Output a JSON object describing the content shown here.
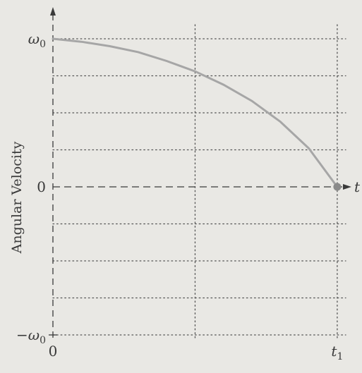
{
  "chart_data": {
    "type": "line",
    "title": "",
    "ylabel": "Angular Velocity",
    "xlabel": "t",
    "x_ticks": [
      {
        "value": 0,
        "label": "0"
      },
      {
        "value": 1,
        "label": "t",
        "sub": "1"
      }
    ],
    "y_ticks": [
      {
        "value": 1,
        "label": "ω",
        "sub": "0"
      },
      {
        "value": 0,
        "label": "0"
      },
      {
        "value": -1,
        "label": "−ω",
        "sub": "0"
      }
    ],
    "xlim": [
      0,
      1.03
    ],
    "ylim": [
      -1,
      1
    ],
    "y_gridlines": [
      1,
      0.75,
      0.5,
      0.25,
      -0.25,
      -0.5,
      -0.75,
      -1
    ],
    "x_gridlines": [
      0.5,
      1
    ],
    "grid": true,
    "grid_style": "dotted",
    "series": [
      {
        "name": "",
        "x": [
          0,
          0.1,
          0.2,
          0.3,
          0.4,
          0.5,
          0.6,
          0.7,
          0.8,
          0.9,
          1.0
        ],
        "y": [
          1.0,
          0.98,
          0.95,
          0.91,
          0.85,
          0.78,
          0.69,
          0.58,
          0.44,
          0.26,
          0.0
        ]
      }
    ],
    "endpoint_marker": {
      "x": 1,
      "y": 0
    },
    "colors": {
      "curve": "#a6a6a6",
      "axes": "#3a3a3a",
      "grid": "#555555",
      "marker": "#8a8a8a"
    }
  }
}
